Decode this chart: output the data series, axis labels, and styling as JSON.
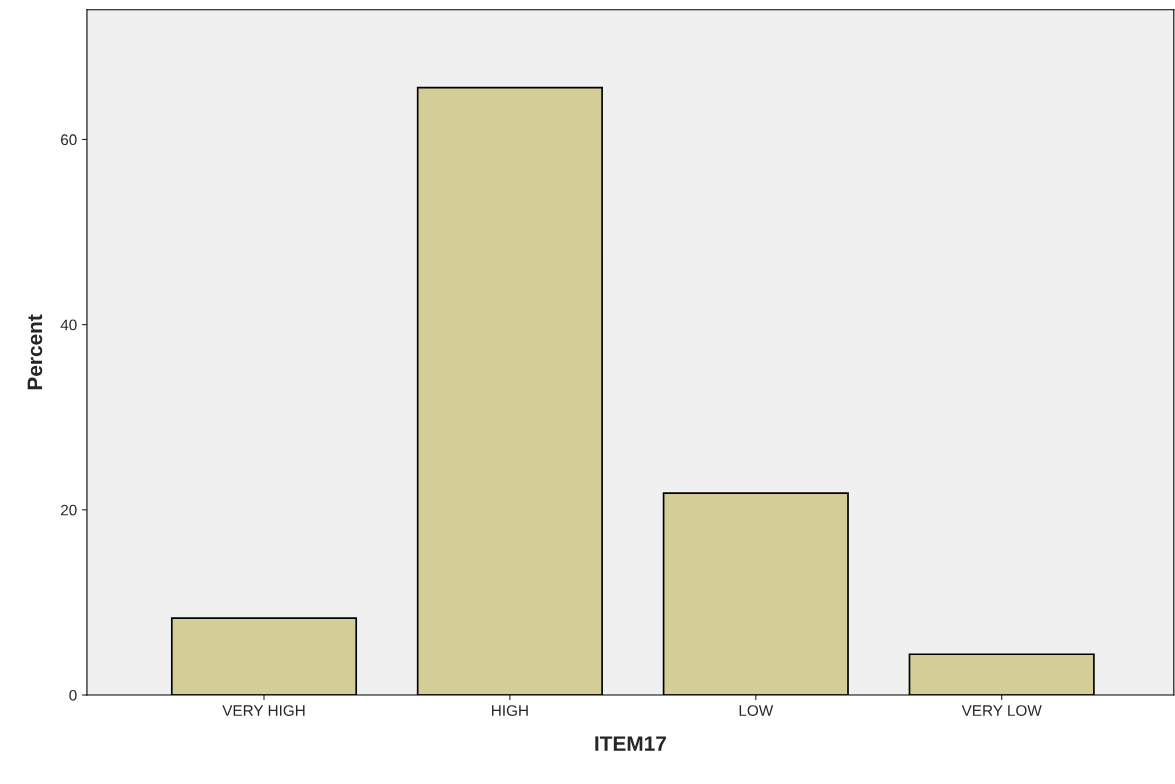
{
  "chart_data": {
    "type": "bar",
    "xlabel": "ITEM17",
    "ylabel": "Percent",
    "categories": [
      "VERY HIGH",
      "HIGH",
      "LOW",
      "VERY LOW"
    ],
    "values": [
      8.3,
      65.6,
      21.8,
      4.4
    ],
    "color": "#d3ce97",
    "ylim": [
      0,
      74
    ],
    "yticks": [
      0,
      20,
      40,
      60
    ],
    "grid": false,
    "legend": false
  }
}
